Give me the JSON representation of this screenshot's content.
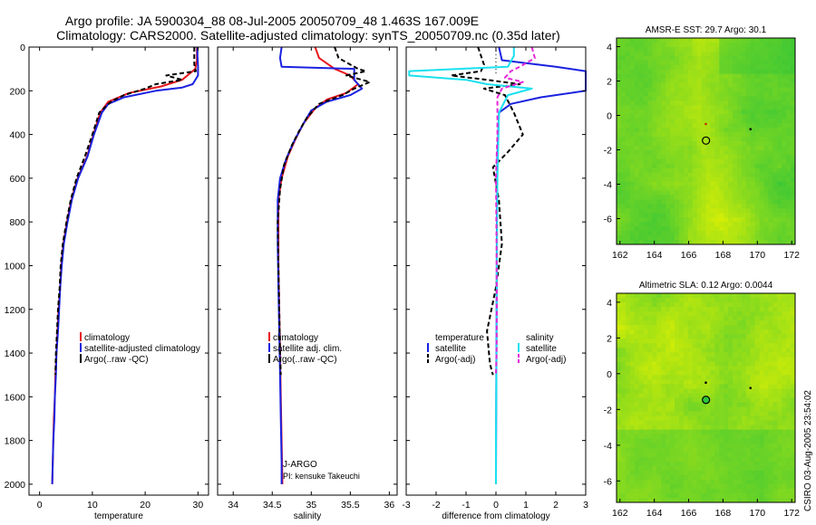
{
  "header": {
    "line1": "Argo profile: JA 5900304_88 08-Jul-2005 20050709_48 1.463S 167.009E",
    "line2": "Climatology: CARS2000. Satellite-adjusted climatology: synTS_20050709.nc (0.35d later)"
  },
  "credit": "CSIRO 03-Aug-2005 23:54:02",
  "colors": {
    "climatology": "#e8161b",
    "satellite": "#1a22e0",
    "argo": "#000000",
    "sat_salinity": "#19e1f0",
    "argo_salinity": "#e526d9",
    "map_green": "#2fc43a",
    "map_yellow": "#e7f200"
  },
  "chart_data": [
    {
      "type": "line",
      "id": "temperature",
      "xlabel": "temperature",
      "xlim": [
        -2,
        32
      ],
      "ylim": [
        0,
        2050
      ],
      "xticks": [
        0,
        10,
        20,
        30
      ],
      "yticks": [
        0,
        200,
        400,
        600,
        800,
        1000,
        1200,
        1400,
        1600,
        1800,
        2000
      ],
      "legend": [
        "climatology",
        "satellite-adjusted climatology",
        "Argo(..raw -QC)"
      ],
      "series": [
        {
          "name": "climatology",
          "color": "climatology",
          "dash": "",
          "points": [
            [
              29.8,
              0
            ],
            [
              29.8,
              60
            ],
            [
              29.5,
              100
            ],
            [
              27,
              150
            ],
            [
              23,
              180
            ],
            [
              17,
              210
            ],
            [
              13,
              250
            ],
            [
              11.5,
              300
            ],
            [
              10.2,
              400
            ],
            [
              9,
              500
            ],
            [
              7.2,
              600
            ],
            [
              6,
              700
            ],
            [
              5.2,
              800
            ],
            [
              4.5,
              900
            ],
            [
              4.1,
              1000
            ],
            [
              3.9,
              1100
            ],
            [
              3.6,
              1200
            ],
            [
              3.4,
              1300
            ],
            [
              3.2,
              1400
            ],
            [
              3.0,
              1500
            ],
            [
              2.9,
              1600
            ],
            [
              2.7,
              1700
            ],
            [
              2.6,
              1800
            ],
            [
              2.5,
              1900
            ],
            [
              2.4,
              2000
            ]
          ]
        },
        {
          "name": "satellite-adjusted climatology",
          "color": "satellite",
          "dash": "",
          "points": [
            [
              29.9,
              0
            ],
            [
              29.9,
              40
            ],
            [
              30,
              90
            ],
            [
              30,
              130
            ],
            [
              29,
              170
            ],
            [
              27,
              185
            ],
            [
              22,
              200
            ],
            [
              16,
              230
            ],
            [
              13,
              260
            ],
            [
              11.8,
              300
            ],
            [
              10.3,
              400
            ],
            [
              9.1,
              500
            ],
            [
              7.3,
              600
            ],
            [
              6.1,
              700
            ],
            [
              5.3,
              800
            ],
            [
              4.6,
              900
            ],
            [
              4.2,
              1000
            ],
            [
              3.9,
              1100
            ],
            [
              3.7,
              1200
            ],
            [
              3.5,
              1300
            ],
            [
              3.2,
              1400
            ],
            [
              3.1,
              1500
            ],
            [
              2.9,
              1600
            ],
            [
              2.8,
              1700
            ],
            [
              2.6,
              1800
            ],
            [
              2.5,
              1900
            ],
            [
              2.4,
              2000
            ]
          ]
        },
        {
          "name": "Argo(..raw -QC)",
          "color": "argo",
          "dash": "5,3",
          "points": [
            [
              29.3,
              0
            ],
            [
              29.3,
              80
            ],
            [
              29.6,
              110
            ],
            [
              24,
              130
            ],
            [
              27,
              150
            ],
            [
              22,
              170
            ],
            [
              20,
              190
            ],
            [
              16,
              220
            ],
            [
              13.5,
              250
            ],
            [
              11.3,
              300
            ],
            [
              10,
              400
            ],
            [
              8.6,
              500
            ],
            [
              7,
              600
            ],
            [
              5.9,
              700
            ],
            [
              5.1,
              800
            ],
            [
              4.4,
              900
            ],
            [
              4,
              1000
            ],
            [
              3.8,
              1100
            ],
            [
              3.5,
              1200
            ],
            [
              3.3,
              1300
            ],
            [
              3.1,
              1400
            ],
            [
              3,
              1500
            ]
          ]
        }
      ]
    },
    {
      "type": "line",
      "id": "salinity",
      "xlabel": "salinity",
      "xlim": [
        33.8,
        36.1
      ],
      "ylim": [
        0,
        2050
      ],
      "xticks": [
        34,
        34.5,
        35,
        35.5,
        36
      ],
      "yticks": [
        0,
        200,
        400,
        600,
        800,
        1000,
        1200,
        1400,
        1600,
        1800,
        2000
      ],
      "legend": [
        "climatology",
        "satellite adj. clim.",
        "Argo(..raw -QC)"
      ],
      "annotation": [
        "J-ARGO",
        "PI: kensuke Takeuchi"
      ],
      "series": [
        {
          "name": "climatology",
          "color": "climatology",
          "dash": "",
          "points": [
            [
              35.05,
              0
            ],
            [
              35.1,
              50
            ],
            [
              35.3,
              100
            ],
            [
              35.5,
              130
            ],
            [
              35.6,
              170
            ],
            [
              35.45,
              210
            ],
            [
              35.2,
              240
            ],
            [
              35.05,
              280
            ],
            [
              34.9,
              350
            ],
            [
              34.8,
              420
            ],
            [
              34.7,
              500
            ],
            [
              34.62,
              600
            ],
            [
              34.58,
              700
            ],
            [
              34.58,
              800
            ],
            [
              34.58,
              1000
            ],
            [
              34.59,
              1200
            ],
            [
              34.6,
              1400
            ],
            [
              34.61,
              1600
            ],
            [
              34.62,
              1800
            ],
            [
              34.63,
              2000
            ]
          ]
        },
        {
          "name": "satellite adj. clim.",
          "color": "satellite",
          "dash": "",
          "points": [
            [
              34.62,
              0
            ],
            [
              34.6,
              50
            ],
            [
              34.62,
              90
            ],
            [
              35.55,
              100
            ],
            [
              35.55,
              150
            ],
            [
              35.65,
              190
            ],
            [
              35.5,
              220
            ],
            [
              35.2,
              250
            ],
            [
              35.0,
              290
            ],
            [
              34.9,
              350
            ],
            [
              34.78,
              430
            ],
            [
              34.68,
              510
            ],
            [
              34.6,
              600
            ],
            [
              34.57,
              700
            ],
            [
              34.57,
              900
            ],
            [
              34.58,
              1100
            ],
            [
              34.59,
              1300
            ],
            [
              34.6,
              1500
            ],
            [
              34.61,
              1700
            ],
            [
              34.62,
              1900
            ],
            [
              34.62,
              2000
            ]
          ]
        },
        {
          "name": "Argo(..raw -QC)",
          "color": "argo",
          "dash": "5,3",
          "points": [
            [
              35.3,
              0
            ],
            [
              35.35,
              50
            ],
            [
              35.6,
              100
            ],
            [
              35.7,
              110
            ],
            [
              35.45,
              130
            ],
            [
              35.75,
              160
            ],
            [
              35.55,
              190
            ],
            [
              35.4,
              220
            ],
            [
              35.1,
              260
            ],
            [
              34.95,
              320
            ],
            [
              34.85,
              380
            ],
            [
              34.75,
              450
            ],
            [
              34.65,
              540
            ],
            [
              34.6,
              650
            ],
            [
              34.57,
              800
            ],
            [
              34.58,
              1000
            ],
            [
              34.59,
              1200
            ],
            [
              34.6,
              1400
            ],
            [
              34.61,
              1500
            ]
          ]
        }
      ]
    },
    {
      "type": "line",
      "id": "difference",
      "xlabel": "difference from climatology",
      "xlim": [
        -3,
        3
      ],
      "ylim": [
        0,
        2050
      ],
      "xticks": [
        -3,
        -2,
        -1,
        0,
        1,
        2,
        3
      ],
      "yticks": [
        0,
        200,
        400,
        600,
        800,
        1000,
        1200,
        1400,
        1600,
        1800,
        2000
      ],
      "legend_left": {
        "title": "temperature",
        "items": [
          "satellite",
          "Argo(-adj)"
        ]
      },
      "legend_right": {
        "title": "salinity",
        "items": [
          "satellite",
          "Argo(-adj)"
        ]
      },
      "series": [
        {
          "name": "temperature satellite",
          "color": "satellite",
          "dash": "",
          "points": [
            [
              0.1,
              0
            ],
            [
              0.2,
              60
            ],
            [
              2,
              90
            ],
            [
              3,
              110
            ],
            [
              3,
              150
            ],
            [
              3,
              180
            ],
            [
              3,
              200
            ],
            [
              1.5,
              230
            ],
            [
              0.5,
              260
            ],
            [
              0.1,
              300
            ],
            [
              0.05,
              500
            ],
            [
              0.03,
              800
            ],
            [
              0.02,
              1200
            ],
            [
              0.01,
              1600
            ],
            [
              0,
              2000
            ]
          ]
        },
        {
          "name": "temperature Argo(-adj)",
          "color": "argo",
          "dash": "5,3",
          "points": [
            [
              -0.6,
              0
            ],
            [
              -0.4,
              80
            ],
            [
              -0.5,
              110
            ],
            [
              -1.5,
              130
            ],
            [
              -0.3,
              150
            ],
            [
              0.8,
              170
            ],
            [
              -0.4,
              190
            ],
            [
              0.3,
              220
            ],
            [
              0.6,
              300
            ],
            [
              0.9,
              400
            ],
            [
              0.4,
              480
            ],
            [
              -0.1,
              550
            ],
            [
              0.1,
              700
            ],
            [
              0.2,
              900
            ],
            [
              0,
              1100
            ],
            [
              -0.3,
              1300
            ],
            [
              -0.2,
              1450
            ],
            [
              -0.1,
              1500
            ]
          ]
        },
        {
          "name": "salinity satellite",
          "color": "sat_salinity",
          "dash": "",
          "points": [
            [
              0.6,
              0
            ],
            [
              0.6,
              40
            ],
            [
              0.4,
              90
            ],
            [
              -2.9,
              110
            ],
            [
              -2.9,
              130
            ],
            [
              -1,
              150
            ],
            [
              -0.3,
              170
            ],
            [
              1.2,
              190
            ],
            [
              0.4,
              220
            ],
            [
              0.1,
              300
            ],
            [
              0.05,
              600
            ],
            [
              0.03,
              1000
            ],
            [
              0.02,
              1400
            ],
            [
              0,
              1800
            ],
            [
              0,
              2000
            ]
          ]
        },
        {
          "name": "salinity Argo(-adj)",
          "color": "argo_salinity",
          "dash": "5,3",
          "points": [
            [
              1.2,
              0
            ],
            [
              1.3,
              50
            ],
            [
              0.8,
              90
            ],
            [
              0.5,
              110
            ],
            [
              0.3,
              140
            ],
            [
              0.9,
              160
            ],
            [
              0.2,
              190
            ],
            [
              0.05,
              230
            ],
            [
              0.05,
              400
            ],
            [
              0,
              600
            ],
            [
              0.02,
              900
            ],
            [
              0.03,
              1200
            ],
            [
              0.02,
              1400
            ],
            [
              0,
              1500
            ]
          ]
        }
      ]
    },
    {
      "type": "heatmap",
      "id": "sst-map",
      "title": "AMSR-E SST: 29.7 Argo: 30.1",
      "xlim": [
        161.8,
        172.2
      ],
      "ylim": [
        -7.5,
        4.5
      ],
      "xticks": [
        162,
        164,
        166,
        168,
        170,
        172
      ],
      "yticks": [
        4,
        2,
        0,
        -2,
        -4,
        -6
      ],
      "profile": {
        "lon": 167.009,
        "lat": -1.463
      },
      "markers": [
        {
          "lon": 167.0,
          "lat": -0.5,
          "color": "#cc2200"
        },
        {
          "lon": 169.6,
          "lat": -0.8,
          "color": "#000000"
        }
      ],
      "marker_fill": "none"
    },
    {
      "type": "heatmap",
      "id": "sla-map",
      "title": "Altimetric SLA: 0.12 Argo: 0.0044",
      "xlim": [
        161.8,
        172.2
      ],
      "ylim": [
        -7.2,
        4.5
      ],
      "xticks": [
        162,
        164,
        166,
        168,
        170,
        172
      ],
      "yticks": [
        4,
        2,
        0,
        -2,
        -4,
        -6
      ],
      "profile": {
        "lon": 167.009,
        "lat": -1.463
      },
      "markers": [
        {
          "lon": 167.0,
          "lat": -0.5,
          "color": "#000000"
        },
        {
          "lon": 169.6,
          "lat": -0.8,
          "color": "#000000"
        }
      ],
      "marker_fill": "#2fc43a"
    }
  ]
}
